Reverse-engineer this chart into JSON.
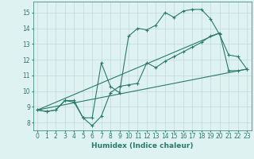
{
  "bg_color": "#dff2f2",
  "grid_color": "#c0dada",
  "line_color": "#2a7a6a",
  "line_width": 0.8,
  "marker": "+",
  "markersize": 3,
  "markeredgewidth": 0.8,
  "xlabel": "Humidex (Indice chaleur)",
  "xlabel_fontsize": 6.5,
  "tick_fontsize": 5.5,
  "ylim": [
    7.5,
    15.7
  ],
  "xlim": [
    -0.5,
    23.5
  ],
  "yticks": [
    8,
    9,
    10,
    11,
    12,
    13,
    14,
    15
  ],
  "xticks": [
    0,
    1,
    2,
    3,
    4,
    5,
    6,
    7,
    8,
    9,
    10,
    11,
    12,
    13,
    14,
    15,
    16,
    17,
    18,
    19,
    20,
    21,
    22,
    23
  ],
  "series1_x": [
    0,
    1,
    2,
    3,
    4,
    5,
    6,
    7,
    8,
    9,
    10,
    11,
    12,
    13,
    14,
    15,
    16,
    17,
    18,
    19,
    20,
    21,
    22,
    23
  ],
  "series1_y": [
    8.8,
    8.7,
    8.8,
    9.4,
    9.4,
    8.3,
    7.8,
    8.4,
    9.9,
    10.3,
    10.4,
    10.5,
    11.8,
    11.5,
    11.9,
    12.2,
    12.5,
    12.8,
    13.1,
    13.5,
    13.7,
    11.3,
    11.3,
    11.4
  ],
  "series2_x": [
    0,
    1,
    2,
    3,
    4,
    5,
    6,
    7,
    8,
    9,
    10,
    11,
    12,
    13,
    14,
    15,
    16,
    17,
    18,
    19,
    20,
    21,
    22,
    23
  ],
  "series2_y": [
    8.8,
    8.7,
    8.8,
    9.4,
    9.3,
    8.3,
    8.3,
    11.8,
    10.3,
    9.9,
    13.5,
    14.0,
    13.9,
    14.2,
    15.0,
    14.7,
    15.1,
    15.2,
    15.2,
    14.6,
    13.6,
    12.3,
    12.2,
    11.4
  ],
  "series3_x": [
    0,
    23
  ],
  "series3_y": [
    8.8,
    11.4
  ],
  "series4_x": [
    0,
    20
  ],
  "series4_y": [
    8.8,
    13.7
  ]
}
